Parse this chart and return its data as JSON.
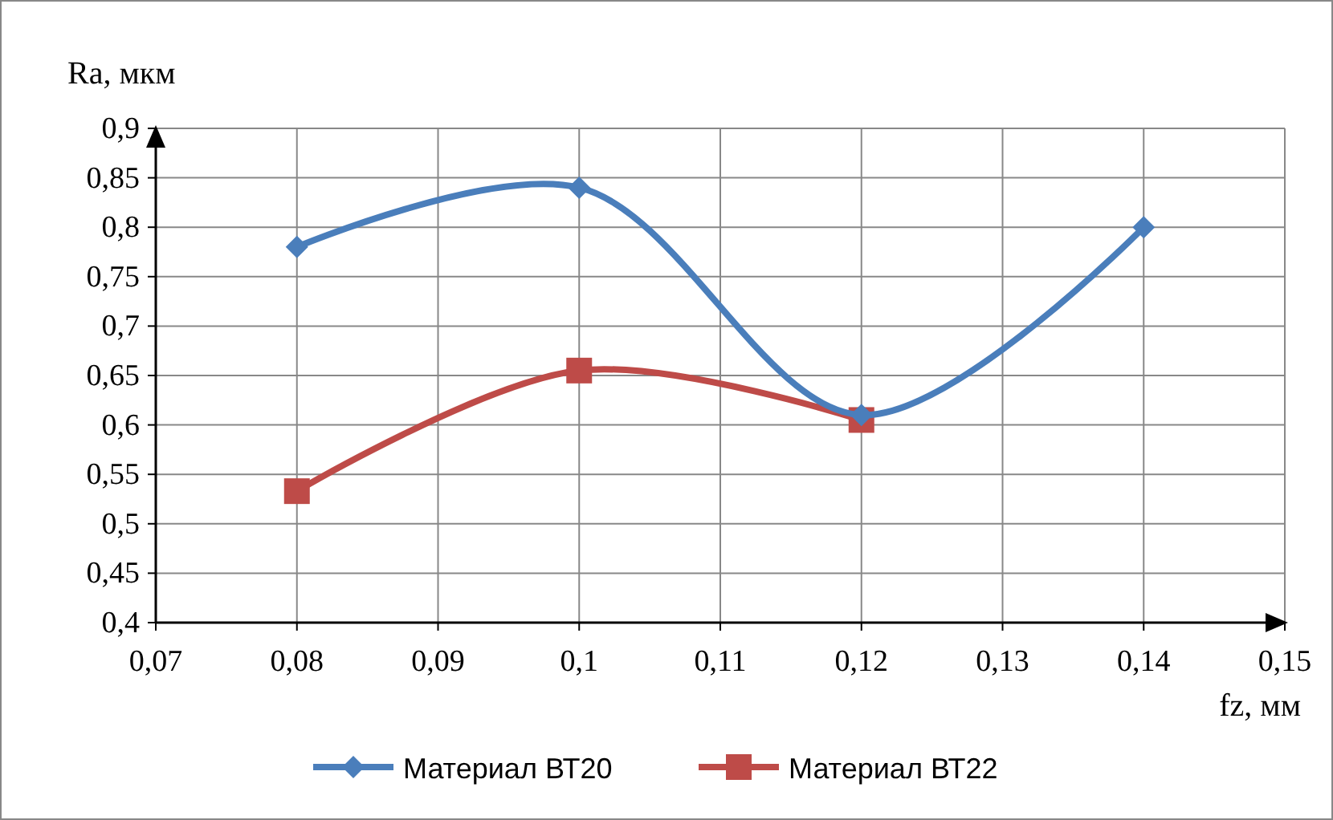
{
  "chart_data": {
    "type": "line",
    "xlabel": "fz, мм",
    "ylabel": "Ra, мкм",
    "x": [
      0.08,
      0.1,
      0.12,
      0.14
    ],
    "series": [
      {
        "name": "Материал ВТ20",
        "color": "#4a7ebb",
        "marker": "diamond",
        "values": [
          0.78,
          0.84,
          0.61,
          0.8
        ]
      },
      {
        "name": "Материал ВТ22",
        "color": "#be4b48",
        "marker": "square",
        "values": [
          0.533,
          0.655,
          0.605,
          null
        ]
      }
    ],
    "xlim": [
      0.07,
      0.15
    ],
    "xticks": [
      {
        "value": 0.07,
        "label": "0,07"
      },
      {
        "value": 0.08,
        "label": "0,08"
      },
      {
        "value": 0.09,
        "label": "0,09"
      },
      {
        "value": 0.1,
        "label": "0,1"
      },
      {
        "value": 0.11,
        "label": "0,11"
      },
      {
        "value": 0.12,
        "label": "0,12"
      },
      {
        "value": 0.13,
        "label": "0,13"
      },
      {
        "value": 0.14,
        "label": "0,14"
      },
      {
        "value": 0.15,
        "label": "0,15"
      }
    ],
    "ylim": [
      0.4,
      0.9
    ],
    "yticks": [
      {
        "value": 0.4,
        "label": "0,4"
      },
      {
        "value": 0.45,
        "label": "0,45"
      },
      {
        "value": 0.5,
        "label": "0,5"
      },
      {
        "value": 0.55,
        "label": "0,55"
      },
      {
        "value": 0.6,
        "label": "0,6"
      },
      {
        "value": 0.65,
        "label": "0,65"
      },
      {
        "value": 0.7,
        "label": "0,7"
      },
      {
        "value": 0.75,
        "label": "0,75"
      },
      {
        "value": 0.8,
        "label": "0,8"
      },
      {
        "value": 0.85,
        "label": "0,85"
      },
      {
        "value": 0.9,
        "label": "0,9"
      }
    ],
    "grid": true,
    "legend": "bottom",
    "line_style": "solid"
  }
}
